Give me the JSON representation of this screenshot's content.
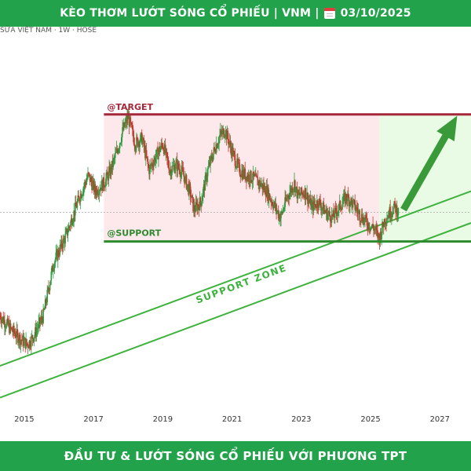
{
  "header": {
    "title_left": "KÈO THƠM LƯỚT SÓNG CỔ PHIẾU | VNM |",
    "date": "03/10/2025"
  },
  "symbol_info": "SỮA VIỆT NAM · 1W · HOSE",
  "footer": {
    "title": "ĐẦU TƯ & LƯỚT SÓNG CỔ PHIẾU VỚI PHƯƠNG TPT"
  },
  "colors": {
    "banner": "#22a24a",
    "target_line": "#a5283a",
    "support_line": "#2d8a2d",
    "target_zone": "#fde8ec",
    "upside_zone": "#e9fbe4",
    "candle_up": "#2e9a3e",
    "candle_down": "#c0392b",
    "support_zone": "#3db33d",
    "arrow": "#3a9a3a"
  },
  "chart_data": {
    "type": "candlestick",
    "x_ticks": [
      "2015",
      "2017",
      "2019",
      "2021",
      "2023",
      "2025",
      "2027"
    ],
    "x_range": [
      2014.3,
      2027.9
    ],
    "y_range": [
      60,
      200
    ],
    "annotations": {
      "target_label": "@TARGET",
      "target_level": 171,
      "support_label": "@SUPPORT",
      "support_level": 123,
      "support_zone_label": "SUPPORT ZONE"
    },
    "close": [
      [
        2014.3,
        95
      ],
      [
        2014.6,
        90
      ],
      [
        2014.9,
        86
      ],
      [
        2015.1,
        84
      ],
      [
        2015.3,
        88
      ],
      [
        2015.55,
        95
      ],
      [
        2015.85,
        115
      ],
      [
        2016.2,
        125
      ],
      [
        2016.6,
        140
      ],
      [
        2016.85,
        148
      ],
      [
        2017.05,
        142
      ],
      [
        2017.3,
        145
      ],
      [
        2017.5,
        150
      ],
      [
        2017.7,
        158
      ],
      [
        2017.85,
        165
      ],
      [
        2018.0,
        170
      ],
      [
        2018.2,
        160
      ],
      [
        2018.4,
        162
      ],
      [
        2018.6,
        150
      ],
      [
        2018.8,
        155
      ],
      [
        2019.0,
        160
      ],
      [
        2019.2,
        150
      ],
      [
        2019.4,
        152
      ],
      [
        2019.6,
        148
      ],
      [
        2019.8,
        141
      ],
      [
        2019.9,
        135
      ],
      [
        2020.1,
        138
      ],
      [
        2020.3,
        150
      ],
      [
        2020.5,
        158
      ],
      [
        2020.65,
        163
      ],
      [
        2020.8,
        165
      ],
      [
        2021.0,
        157
      ],
      [
        2021.2,
        150
      ],
      [
        2021.4,
        148
      ],
      [
        2021.6,
        147
      ],
      [
        2021.8,
        145
      ],
      [
        2022.0,
        142
      ],
      [
        2022.2,
        137
      ],
      [
        2022.4,
        132
      ],
      [
        2022.6,
        140
      ],
      [
        2022.8,
        145
      ],
      [
        2022.9,
        140
      ],
      [
        2023.1,
        142
      ],
      [
        2023.3,
        136
      ],
      [
        2023.5,
        138
      ],
      [
        2023.7,
        134
      ],
      [
        2023.9,
        132
      ],
      [
        2024.1,
        136
      ],
      [
        2024.3,
        140
      ],
      [
        2024.5,
        137
      ],
      [
        2024.7,
        133
      ],
      [
        2024.9,
        130
      ],
      [
        2025.1,
        128
      ],
      [
        2025.25,
        124
      ],
      [
        2025.4,
        131
      ],
      [
        2025.55,
        134
      ],
      [
        2025.7,
        136
      ],
      [
        2025.8,
        134
      ]
    ]
  }
}
